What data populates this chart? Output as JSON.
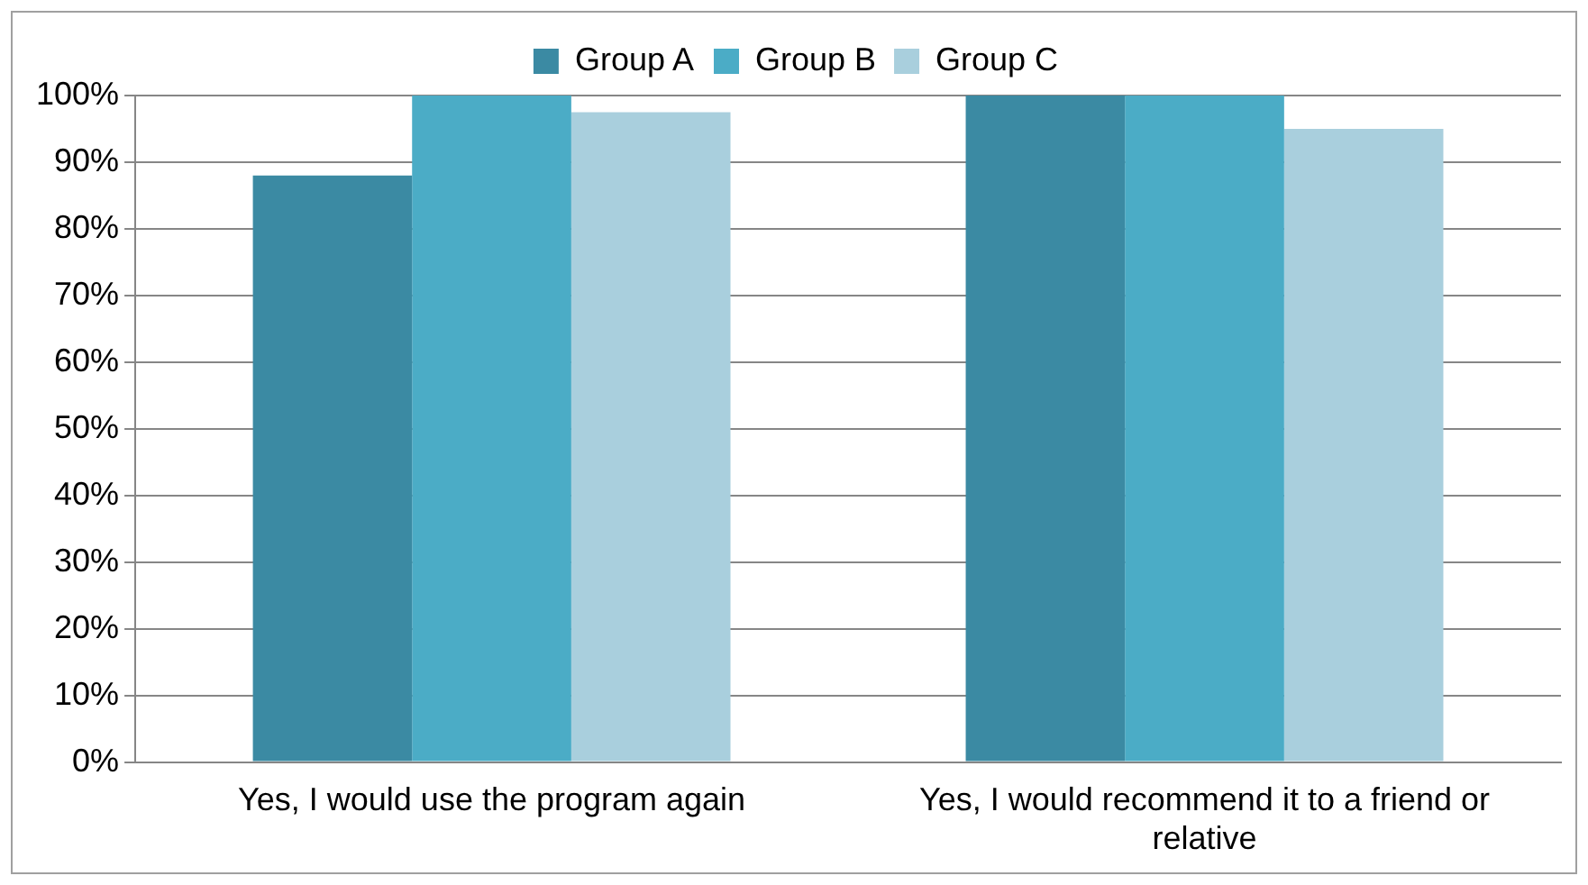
{
  "chart_data": {
    "type": "bar",
    "categories": [
      "Yes, I would use the program again",
      "Yes, I would recommend it to a friend or relative"
    ],
    "series": [
      {
        "name": "Group A",
        "color": "#3b8aa3",
        "values": [
          88,
          100
        ]
      },
      {
        "name": "Group B",
        "color": "#4bacc6",
        "values": [
          100,
          100
        ]
      },
      {
        "name": "Group C",
        "color": "#a9cfdd",
        "values": [
          97.5,
          95
        ]
      }
    ],
    "ylim": [
      0,
      100
    ],
    "yticks": [
      {
        "value": 0,
        "label": "0%"
      },
      {
        "value": 10,
        "label": "10%"
      },
      {
        "value": 20,
        "label": "20%"
      },
      {
        "value": 30,
        "label": "30%"
      },
      {
        "value": 40,
        "label": "40%"
      },
      {
        "value": 50,
        "label": "50%"
      },
      {
        "value": 60,
        "label": "60%"
      },
      {
        "value": 70,
        "label": "70%"
      },
      {
        "value": 80,
        "label": "80%"
      },
      {
        "value": 90,
        "label": "90%"
      },
      {
        "value": 100,
        "label": "100%"
      }
    ],
    "grid": "y",
    "legend": "top"
  }
}
